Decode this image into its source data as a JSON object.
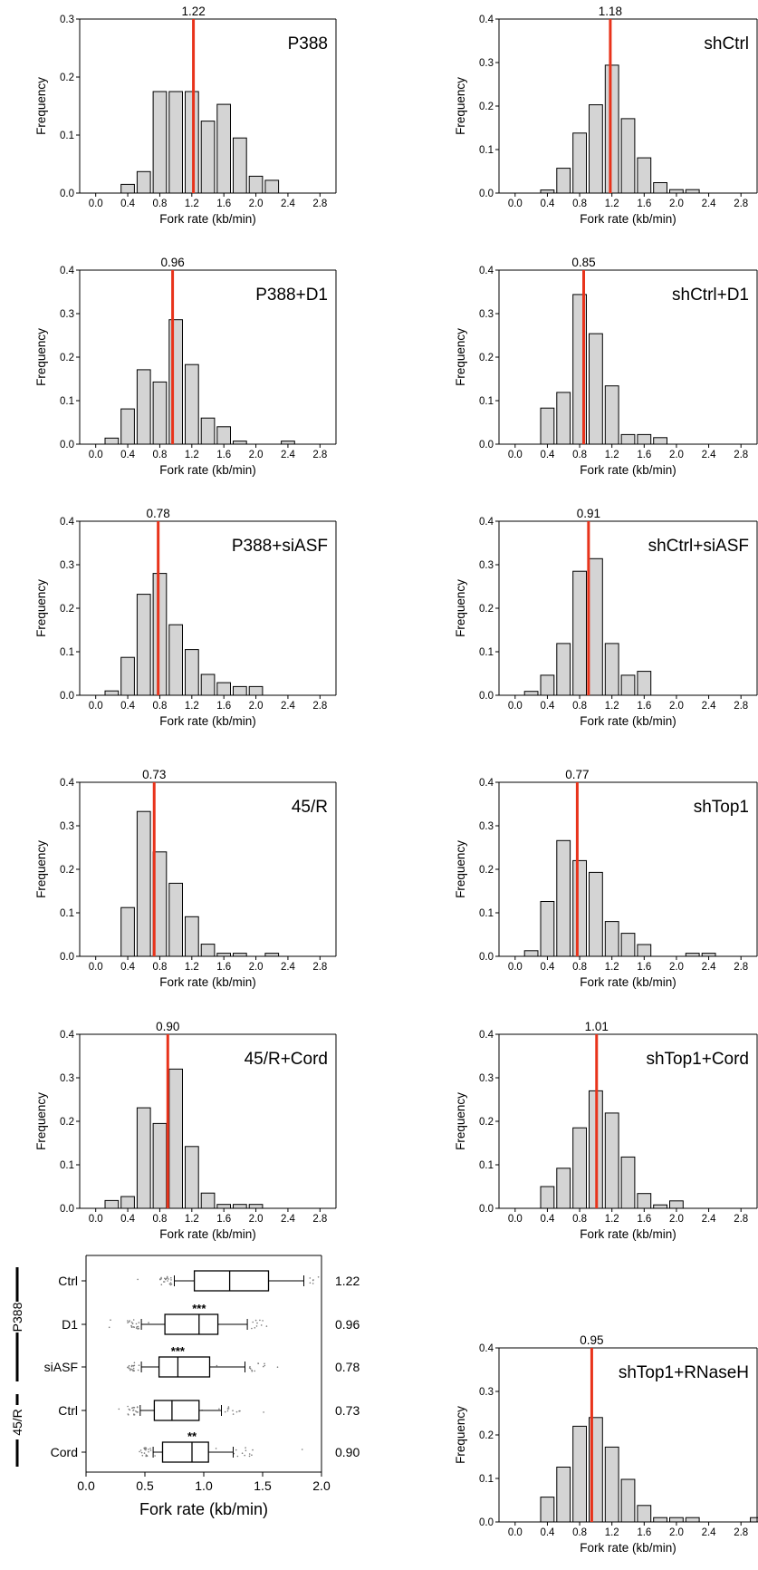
{
  "chart_data": [
    {
      "type": "bar",
      "panel": "histogram",
      "label": "P388",
      "median": 1.22,
      "median_label": "1.22",
      "xlabel": "Fork rate (kb/min)",
      "ylabel": "Frequency",
      "xlim": [
        -0.2,
        3.0
      ],
      "ylim": [
        0,
        0.3
      ],
      "xticks": [
        "0.0",
        "0.4",
        "0.8",
        "1.2",
        "1.6",
        "2.0",
        "2.4",
        "2.8"
      ],
      "yticks": [
        "0.0",
        "0.1",
        "0.2",
        "0.3"
      ],
      "bin_width": 0.2,
      "x": [
        0.0,
        0.2,
        0.4,
        0.6,
        0.8,
        1.0,
        1.2,
        1.4,
        1.6,
        1.8,
        2.0,
        2.2,
        2.4,
        2.6,
        2.8
      ],
      "values": [
        0,
        0,
        0.015,
        0.037,
        0.175,
        0.175,
        0.175,
        0.124,
        0.153,
        0.095,
        0.029,
        0.022,
        0,
        0,
        0
      ]
    },
    {
      "type": "bar",
      "panel": "histogram",
      "label": "shCtrl",
      "median": 1.18,
      "median_label": "1.18",
      "xlabel": "Fork rate (kb/min)",
      "ylabel": "Frequency",
      "xlim": [
        -0.2,
        3.0
      ],
      "ylim": [
        0,
        0.4
      ],
      "xticks": [
        "0.0",
        "0.4",
        "0.8",
        "1.2",
        "1.6",
        "2.0",
        "2.4",
        "2.8"
      ],
      "yticks": [
        "0.0",
        "0.1",
        "0.2",
        "0.3",
        "0.4"
      ],
      "bin_width": 0.2,
      "x": [
        0.0,
        0.2,
        0.4,
        0.6,
        0.8,
        1.0,
        1.2,
        1.4,
        1.6,
        1.8,
        2.0,
        2.2,
        2.4,
        2.6,
        2.8
      ],
      "values": [
        0,
        0,
        0.007,
        0.057,
        0.138,
        0.203,
        0.294,
        0.171,
        0.081,
        0.024,
        0.008,
        0.008,
        0,
        0,
        0
      ]
    },
    {
      "type": "bar",
      "panel": "histogram",
      "label": "P388+D1",
      "median": 0.96,
      "median_label": "0.96",
      "xlabel": "Fork rate (kb/min)",
      "ylabel": "Frequency",
      "xlim": [
        -0.2,
        3.0
      ],
      "ylim": [
        0,
        0.4
      ],
      "xticks": [
        "0.0",
        "0.4",
        "0.8",
        "1.2",
        "1.6",
        "2.0",
        "2.4",
        "2.8"
      ],
      "yticks": [
        "0.0",
        "0.1",
        "0.2",
        "0.3",
        "0.4"
      ],
      "bin_width": 0.2,
      "x": [
        0.0,
        0.2,
        0.4,
        0.6,
        0.8,
        1.0,
        1.2,
        1.4,
        1.6,
        1.8,
        2.0,
        2.2,
        2.4,
        2.6,
        2.8
      ],
      "values": [
        0,
        0.014,
        0.081,
        0.171,
        0.143,
        0.286,
        0.183,
        0.06,
        0.04,
        0.007,
        0,
        0,
        0.007,
        0,
        0
      ]
    },
    {
      "type": "bar",
      "panel": "histogram",
      "label": "shCtrl+D1",
      "median": 0.85,
      "median_label": "0.85",
      "xlabel": "Fork rate (kb/min)",
      "ylabel": "Frequency",
      "xlim": [
        -0.2,
        3.0
      ],
      "ylim": [
        0,
        0.4
      ],
      "xticks": [
        "0.0",
        "0.4",
        "0.8",
        "1.2",
        "1.6",
        "2.0",
        "2.4",
        "2.8"
      ],
      "yticks": [
        "0.0",
        "0.1",
        "0.2",
        "0.3",
        "0.4"
      ],
      "bin_width": 0.2,
      "x": [
        0.0,
        0.2,
        0.4,
        0.6,
        0.8,
        1.0,
        1.2,
        1.4,
        1.6,
        1.8,
        2.0,
        2.2,
        2.4,
        2.6,
        2.8
      ],
      "values": [
        0,
        0,
        0.083,
        0.119,
        0.344,
        0.254,
        0.134,
        0.022,
        0.022,
        0.015,
        0,
        0,
        0,
        0,
        0
      ]
    },
    {
      "type": "bar",
      "panel": "histogram",
      "label": "P388+siASF",
      "median": 0.78,
      "median_label": "0.78",
      "xlabel": "Fork rate (kb/min)",
      "ylabel": "Frequency",
      "xlim": [
        -0.2,
        3.0
      ],
      "ylim": [
        0,
        0.4
      ],
      "xticks": [
        "0.0",
        "0.4",
        "0.8",
        "1.2",
        "1.6",
        "2.0",
        "2.4",
        "2.8"
      ],
      "yticks": [
        "0.0",
        "0.1",
        "0.2",
        "0.3",
        "0.4"
      ],
      "bin_width": 0.2,
      "x": [
        0.0,
        0.2,
        0.4,
        0.6,
        0.8,
        1.0,
        1.2,
        1.4,
        1.6,
        1.8,
        2.0,
        2.2,
        2.4,
        2.6,
        2.8
      ],
      "values": [
        0,
        0.01,
        0.087,
        0.232,
        0.28,
        0.162,
        0.105,
        0.048,
        0.029,
        0.02,
        0.02,
        0,
        0,
        0,
        0
      ]
    },
    {
      "type": "bar",
      "panel": "histogram",
      "label": "shCtrl+siASF",
      "median": 0.91,
      "median_label": "0.91",
      "xlabel": "Fork rate (kb/min)",
      "ylabel": "Frequency",
      "xlim": [
        -0.2,
        3.0
      ],
      "ylim": [
        0,
        0.4
      ],
      "xticks": [
        "0.0",
        "0.4",
        "0.8",
        "1.2",
        "1.6",
        "2.0",
        "2.4",
        "2.8"
      ],
      "yticks": [
        "0.0",
        "0.1",
        "0.2",
        "0.3",
        "0.4"
      ],
      "bin_width": 0.2,
      "x": [
        0.0,
        0.2,
        0.4,
        0.6,
        0.8,
        1.0,
        1.2,
        1.4,
        1.6,
        1.8,
        2.0,
        2.2,
        2.4,
        2.6,
        2.8
      ],
      "values": [
        0,
        0.009,
        0.046,
        0.119,
        0.285,
        0.314,
        0.119,
        0.046,
        0.055,
        0,
        0,
        0,
        0,
        0,
        0
      ]
    },
    {
      "type": "bar",
      "panel": "histogram",
      "label": "45/R",
      "median": 0.73,
      "median_label": "0.73",
      "xlabel": "Fork rate (kb/min)",
      "ylabel": "Frequency",
      "xlim": [
        -0.2,
        3.0
      ],
      "ylim": [
        0,
        0.4
      ],
      "xticks": [
        "0.0",
        "0.4",
        "0.8",
        "1.2",
        "1.6",
        "2.0",
        "2.4",
        "2.8"
      ],
      "yticks": [
        "0.0",
        "0.1",
        "0.2",
        "0.3",
        "0.4"
      ],
      "bin_width": 0.2,
      "x": [
        0.0,
        0.2,
        0.4,
        0.6,
        0.8,
        1.0,
        1.2,
        1.4,
        1.6,
        1.8,
        2.0,
        2.2,
        2.4,
        2.6,
        2.8
      ],
      "values": [
        0,
        0,
        0.112,
        0.333,
        0.24,
        0.168,
        0.091,
        0.028,
        0.007,
        0.007,
        0,
        0.007,
        0,
        0,
        0
      ]
    },
    {
      "type": "bar",
      "panel": "histogram",
      "label": "shTop1",
      "median": 0.77,
      "median_label": "0.77",
      "xlabel": "Fork rate (kb/min)",
      "ylabel": "Frequency",
      "xlim": [
        -0.2,
        3.0
      ],
      "ylim": [
        0,
        0.4
      ],
      "xticks": [
        "0.0",
        "0.4",
        "0.8",
        "1.2",
        "1.6",
        "2.0",
        "2.4",
        "2.8"
      ],
      "yticks": [
        "0.0",
        "0.1",
        "0.2",
        "0.3",
        "0.4"
      ],
      "bin_width": 0.2,
      "x": [
        0.0,
        0.2,
        0.4,
        0.6,
        0.8,
        1.0,
        1.2,
        1.4,
        1.6,
        1.8,
        2.0,
        2.2,
        2.4,
        2.6,
        2.8
      ],
      "values": [
        0,
        0.013,
        0.126,
        0.266,
        0.22,
        0.193,
        0.08,
        0.053,
        0.027,
        0,
        0,
        0.007,
        0.007,
        0,
        0
      ]
    },
    {
      "type": "bar",
      "panel": "histogram",
      "label": "45/R+Cord",
      "median": 0.9,
      "median_label": "0.90",
      "xlabel": "Fork rate (kb/min)",
      "ylabel": "Frequency",
      "xlim": [
        -0.2,
        3.0
      ],
      "ylim": [
        0,
        0.4
      ],
      "xticks": [
        "0.0",
        "0.4",
        "0.8",
        "1.2",
        "1.6",
        "2.0",
        "2.4",
        "2.8"
      ],
      "yticks": [
        "0.0",
        "0.1",
        "0.2",
        "0.3",
        "0.4"
      ],
      "bin_width": 0.2,
      "x": [
        0.0,
        0.2,
        0.4,
        0.6,
        0.8,
        1.0,
        1.2,
        1.4,
        1.6,
        1.8,
        2.0,
        2.2,
        2.4,
        2.6,
        2.8
      ],
      "values": [
        0,
        0.018,
        0.027,
        0.231,
        0.195,
        0.32,
        0.142,
        0.035,
        0.009,
        0.009,
        0.009,
        0,
        0,
        0,
        0
      ]
    },
    {
      "type": "bar",
      "panel": "histogram",
      "label": "shTop1+Cord",
      "median": 1.01,
      "median_label": "1.01",
      "xlabel": "Fork rate (kb/min)",
      "ylabel": "Frequency",
      "xlim": [
        -0.2,
        3.0
      ],
      "ylim": [
        0,
        0.4
      ],
      "xticks": [
        "0.0",
        "0.4",
        "0.8",
        "1.2",
        "1.6",
        "2.0",
        "2.4",
        "2.8"
      ],
      "yticks": [
        "0.0",
        "0.1",
        "0.2",
        "0.3",
        "0.4"
      ],
      "bin_width": 0.2,
      "x": [
        0.0,
        0.2,
        0.4,
        0.6,
        0.8,
        1.0,
        1.2,
        1.4,
        1.6,
        1.8,
        2.0,
        2.2,
        2.4,
        2.6,
        2.8
      ],
      "values": [
        0,
        0,
        0.05,
        0.092,
        0.185,
        0.27,
        0.219,
        0.118,
        0.034,
        0.008,
        0.017,
        0,
        0,
        0,
        0
      ]
    },
    {
      "type": "boxplot",
      "panel": "boxplot",
      "xlabel": "Fork rate (kb/min)",
      "xlim": [
        0,
        2.0
      ],
      "xticks": [
        "0.0",
        "0.5",
        "1.0",
        "1.5",
        "2.0"
      ],
      "groups": [
        {
          "name": "P388",
          "rows": [
            "Ctrl",
            "D1",
            "siASF"
          ]
        },
        {
          "name": "45/R",
          "rows": [
            "Ctrl",
            "Cord"
          ]
        }
      ],
      "series": [
        {
          "name": "Ctrl",
          "median": 1.22,
          "median_label": "1.22",
          "q1": 0.92,
          "q3": 1.55,
          "whisker_low": 0.75,
          "whisker_high": 1.85,
          "significance": ""
        },
        {
          "name": "D1",
          "median": 0.96,
          "median_label": "0.96",
          "q1": 0.67,
          "q3": 1.12,
          "whisker_low": 0.47,
          "whisker_high": 1.37,
          "significance": "***"
        },
        {
          "name": "siASF",
          "median": 0.78,
          "median_label": "0.78",
          "q1": 0.62,
          "q3": 1.05,
          "whisker_low": 0.47,
          "whisker_high": 1.35,
          "significance": "***"
        },
        {
          "name": "Ctrl",
          "median": 0.73,
          "median_label": "0.73",
          "q1": 0.58,
          "q3": 0.96,
          "whisker_low": 0.46,
          "whisker_high": 1.15,
          "significance": ""
        },
        {
          "name": "Cord",
          "median": 0.9,
          "median_label": "0.90",
          "q1": 0.65,
          "q3": 1.04,
          "whisker_low": 0.57,
          "whisker_high": 1.25,
          "significance": "**"
        }
      ]
    },
    {
      "type": "bar",
      "panel": "histogram",
      "label": "shTop1+RNaseH",
      "median": 0.95,
      "median_label": "0.95",
      "xlabel": "Fork rate (kb/min)",
      "ylabel": "Frequency",
      "xlim": [
        -0.2,
        3.0
      ],
      "ylim": [
        0,
        0.4
      ],
      "xticks": [
        "0.0",
        "0.4",
        "0.8",
        "1.2",
        "1.6",
        "2.0",
        "2.4",
        "2.8"
      ],
      "yticks": [
        "0.0",
        "0.1",
        "0.2",
        "0.3",
        "0.4"
      ],
      "bin_width": 0.2,
      "x": [
        0.0,
        0.2,
        0.4,
        0.6,
        0.8,
        1.0,
        1.2,
        1.4,
        1.6,
        1.8,
        2.0,
        2.2,
        2.4,
        2.6,
        2.8,
        3.0
      ],
      "values": [
        0,
        0,
        0.057,
        0.126,
        0.22,
        0.24,
        0.172,
        0.098,
        0.038,
        0.01,
        0.01,
        0.01,
        0,
        0,
        0,
        0.01
      ]
    }
  ],
  "colors": {
    "bar_fill": "#d4d4d4",
    "bar_stroke": "#000000",
    "median_line": "#e8331b",
    "axis": "#000000",
    "scatter_points": "#7a7a7a"
  }
}
